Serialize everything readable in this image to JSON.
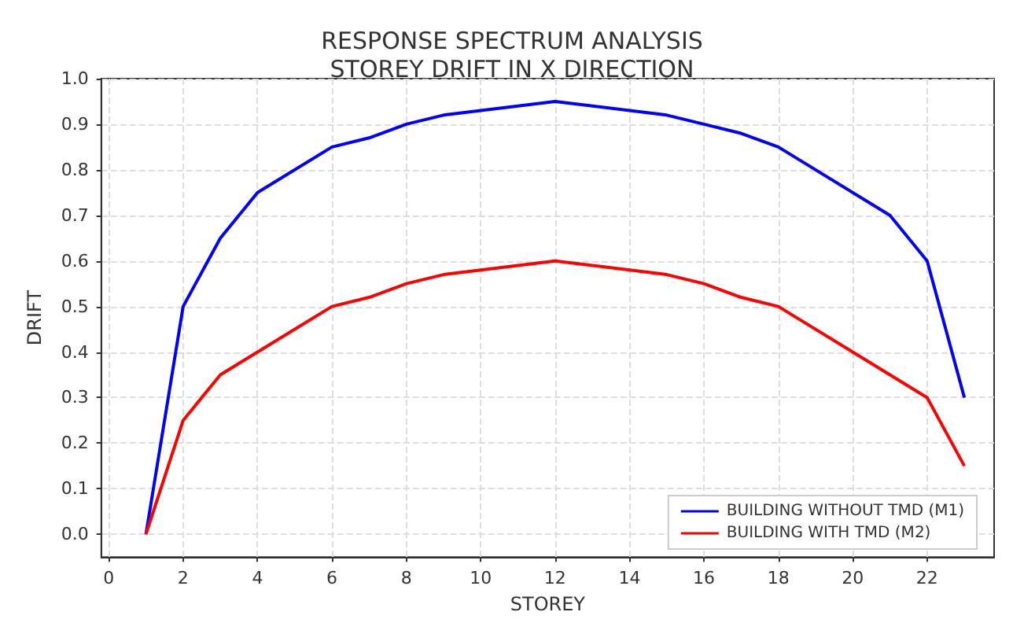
{
  "chart_data": {
    "type": "line",
    "title": "RESPONSE SPECTRUM ANALYSIS\nSTOREY DRIFT IN X DIRECTION",
    "xlabel": "STOREY",
    "ylabel": "DRIFT",
    "series": [
      {
        "name": "BUILDING WITHOUT TMD (M1)",
        "color": "#0000ff",
        "x": [
          1,
          2,
          3,
          4,
          6,
          7,
          8,
          9,
          12,
          15,
          16,
          17,
          18,
          21,
          22,
          23
        ],
        "values": [
          0,
          0.5,
          0.65,
          0.75,
          0.85,
          0.87,
          0.9,
          0.92,
          0.95,
          0.92,
          0.9,
          0.88,
          0.85,
          0.7,
          0.6,
          0.3
        ]
      },
      {
        "name": "BUILDING WITH TMD (M2)",
        "color": "#ff0000",
        "x": [
          1,
          2,
          3,
          4,
          6,
          7,
          8,
          9,
          12,
          15,
          16,
          17,
          18,
          20,
          22,
          23
        ],
        "values": [
          0,
          0.25,
          0.35,
          0.4,
          0.5,
          0.52,
          0.55,
          0.57,
          0.6,
          0.57,
          0.55,
          0.52,
          0.5,
          0.4,
          0.3,
          0.15
        ]
      }
    ],
    "xlim": [
      -0.2,
      23.8
    ],
    "xticks": [
      0,
      2,
      4,
      6,
      8,
      10,
      12,
      14,
      16,
      18,
      20,
      22
    ],
    "ylim": [
      -0.05,
      1.0
    ],
    "yticks": [
      {
        "value": 0,
        "label": "0.0"
      },
      0.1,
      0.2,
      0.3,
      0.4,
      0.5,
      0.6,
      0.7,
      0.8,
      0.9,
      {
        "value": 1,
        "label": "1.0"
      }
    ],
    "grid": true,
    "legend": "bottom right",
    "marker": "none",
    "line_style": "solid"
  }
}
